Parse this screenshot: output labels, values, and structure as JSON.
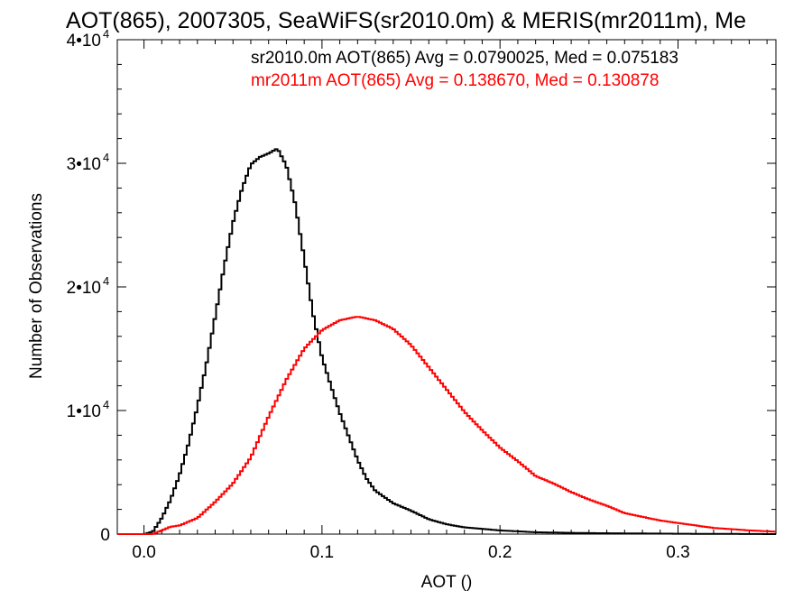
{
  "chart_data": {
    "type": "line",
    "title": "AOT(865), 2007305, SeaWiFS(sr2010.0m) & MERIS(mr2011m), Me",
    "xlabel": "AOT ()",
    "ylabel": "Number of Observations",
    "xlim": [
      -0.015,
      0.355
    ],
    "ylim": [
      0,
      40000
    ],
    "x_ticks": [
      {
        "value": 0.0,
        "label": "0.0"
      },
      {
        "value": 0.1,
        "label": "0.1"
      },
      {
        "value": 0.2,
        "label": "0.2"
      },
      {
        "value": 0.3,
        "label": "0.3"
      }
    ],
    "y_ticks": [
      {
        "value": 0,
        "label": "0",
        "exp": ""
      },
      {
        "value": 10000,
        "label": "1•10",
        "exp": "4"
      },
      {
        "value": 20000,
        "label": "2•10",
        "exp": "4"
      },
      {
        "value": 30000,
        "label": "3•10",
        "exp": "4"
      },
      {
        "value": 40000,
        "label": "4•10",
        "exp": "4"
      }
    ],
    "grid": false,
    "legend_position": "top",
    "annotations": [
      {
        "text": "sr2010.0m AOT(865) Avg = 0.0790025, Med = 0.075183",
        "color": "#000000"
      },
      {
        "text": "mr2011m AOT(865) Avg = 0.138670, Med = 0.130878",
        "color": "#ff0000"
      }
    ],
    "series": [
      {
        "color": "#000000",
        "x": [
          -0.015,
          0.0,
          0.005,
          0.01,
          0.015,
          0.02,
          0.025,
          0.03,
          0.035,
          0.04,
          0.045,
          0.05,
          0.055,
          0.06,
          0.065,
          0.07,
          0.075,
          0.08,
          0.085,
          0.09,
          0.095,
          0.1,
          0.105,
          0.11,
          0.115,
          0.12,
          0.125,
          0.13,
          0.14,
          0.15,
          0.16,
          0.17,
          0.18,
          0.2,
          0.22,
          0.25,
          0.3,
          0.355
        ],
        "y": [
          0,
          0,
          200,
          1300,
          2800,
          4800,
          7300,
          10300,
          13700,
          17600,
          21600,
          25200,
          27900,
          29900,
          30500,
          30800,
          31200,
          29800,
          26700,
          22300,
          17800,
          14300,
          12000,
          9800,
          7900,
          6000,
          4500,
          3500,
          2500,
          1900,
          1200,
          800,
          550,
          300,
          150,
          80,
          30,
          0
        ]
      },
      {
        "color": "#ff0000",
        "x": [
          -0.015,
          0.005,
          0.01,
          0.015,
          0.02,
          0.03,
          0.04,
          0.05,
          0.06,
          0.07,
          0.08,
          0.09,
          0.1,
          0.11,
          0.12,
          0.13,
          0.14,
          0.15,
          0.16,
          0.17,
          0.18,
          0.19,
          0.2,
          0.21,
          0.22,
          0.23,
          0.24,
          0.25,
          0.26,
          0.27,
          0.28,
          0.29,
          0.3,
          0.31,
          0.32,
          0.33,
          0.34,
          0.355
        ],
        "y": [
          0,
          0,
          300,
          600,
          700,
          1300,
          2600,
          4100,
          6200,
          9500,
          12500,
          15000,
          16500,
          17300,
          17600,
          17300,
          16600,
          15300,
          13500,
          11700,
          9900,
          8400,
          7000,
          5900,
          4700,
          4100,
          3400,
          2800,
          2300,
          1700,
          1400,
          1100,
          900,
          700,
          500,
          400,
          300,
          200
        ]
      }
    ]
  }
}
